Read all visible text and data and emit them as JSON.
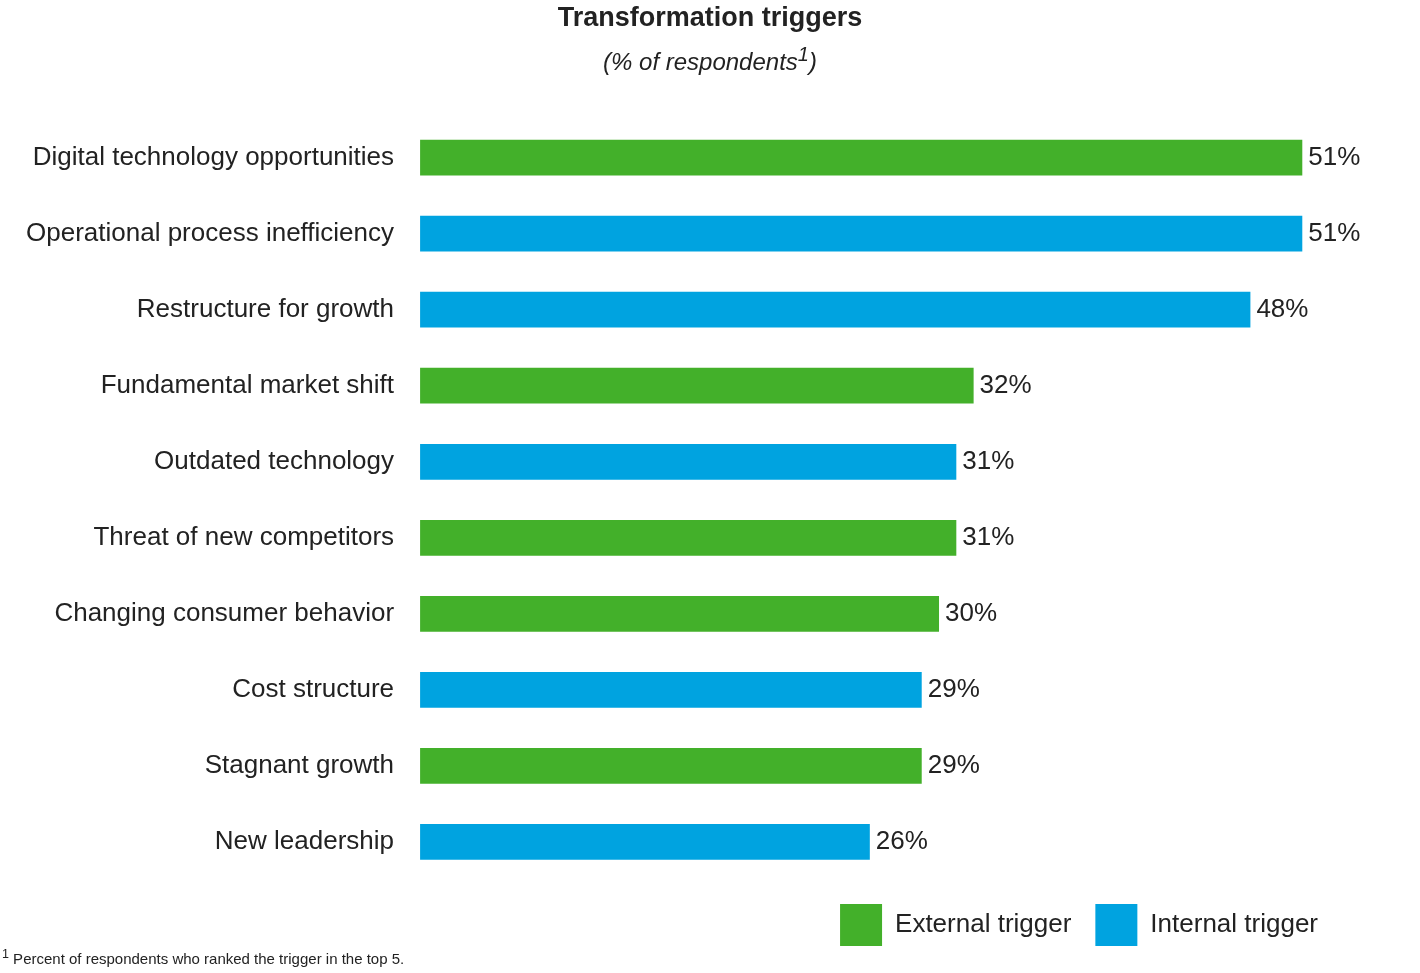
{
  "chart_data": {
    "type": "bar",
    "orientation": "horizontal",
    "stacked": true,
    "title": "Transformation triggers",
    "subtitle": "(% of respondents$^{1}$)",
    "categories": [
      "Digital technology opportunities",
      "Operational process inefficiency",
      "Restructure for growth",
      "Fundamental market shift",
      "Outdated technology",
      "Threat of new competitors",
      "Changing consumer behavior",
      "Cost structure",
      "Stagnant growth",
      "New leadership"
    ],
    "series": [
      {
        "name": "External trigger",
        "color": "#43b02a",
        "values": [
          51,
          null,
          null,
          32,
          null,
          31,
          30,
          null,
          29,
          null
        ],
        "value_labels": [
          "51%",
          null,
          null,
          "32%",
          null,
          "31%",
          "30%",
          null,
          "29%",
          null
        ]
      },
      {
        "name": "Internal trigger",
        "color": "#00a3e0",
        "values": [
          null,
          51,
          48,
          null,
          31,
          null,
          null,
          29,
          null,
          26
        ],
        "value_labels": [
          null,
          "51%",
          "48%",
          null,
          "31%",
          null,
          null,
          "29%",
          null,
          "26%"
        ]
      }
    ],
    "legend": "bottom right",
    "annotations": [
      "$^{1}$ Percent of respondents who ranked the trigger in the top 5."
    ]
  }
}
